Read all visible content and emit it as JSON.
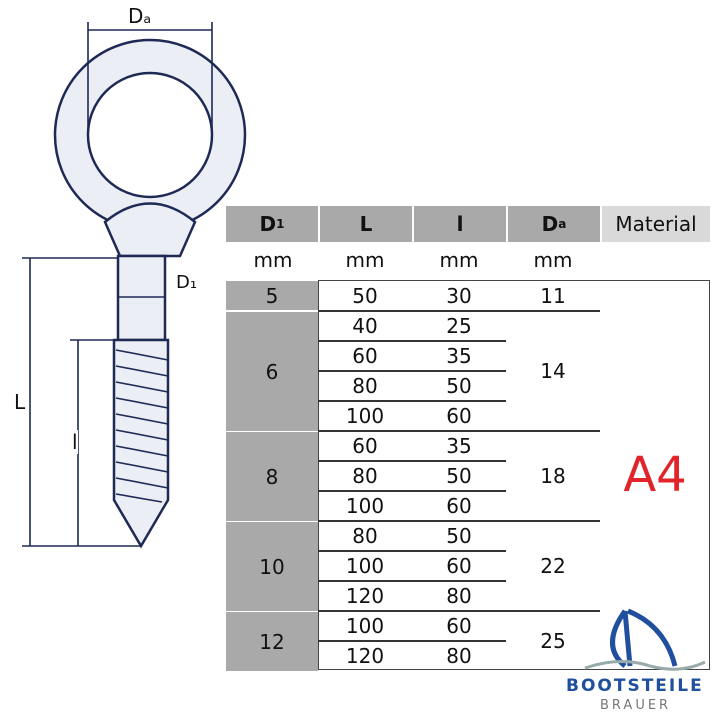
{
  "watermark": {
    "line1": "BOOTSTEILE",
    "line2": "BRAUER"
  },
  "drawing": {
    "label_da": "Dₐ",
    "label_d1": "D₁",
    "label_L": "L",
    "label_l": "l"
  },
  "table": {
    "headers": {
      "d1": "D",
      "d1_sub": "1",
      "L": "L",
      "l": "l",
      "da": "D",
      "da_sub": "a",
      "material": "Material"
    },
    "units": [
      "mm",
      "mm",
      "mm",
      "mm"
    ],
    "material": "A4",
    "groups": [
      {
        "d1": "5",
        "da": "11",
        "rows": [
          [
            "50",
            "30"
          ]
        ]
      },
      {
        "d1": "6",
        "da": "14",
        "rows": [
          [
            "40",
            "25"
          ],
          [
            "60",
            "35"
          ],
          [
            "80",
            "50"
          ],
          [
            "100",
            "60"
          ]
        ]
      },
      {
        "d1": "8",
        "da": "18",
        "rows": [
          [
            "60",
            "35"
          ],
          [
            "80",
            "50"
          ],
          [
            "100",
            "60"
          ]
        ]
      },
      {
        "d1": "10",
        "da": "22",
        "rows": [
          [
            "80",
            "50"
          ],
          [
            "100",
            "60"
          ],
          [
            "120",
            "80"
          ]
        ]
      },
      {
        "d1": "12",
        "da": "25",
        "rows": [
          [
            "100",
            "60"
          ],
          [
            "120",
            "80"
          ]
        ]
      }
    ]
  },
  "logo": {
    "name": "BOOTSTEILE",
    "sub": "BRAUER"
  },
  "colors": {
    "header_gray": "#a9a9a9",
    "material_header": "#d9d9d9",
    "material_red": "#e0242a",
    "drawing": "#1e2a55",
    "logo_blue": "#1f4f9e"
  }
}
